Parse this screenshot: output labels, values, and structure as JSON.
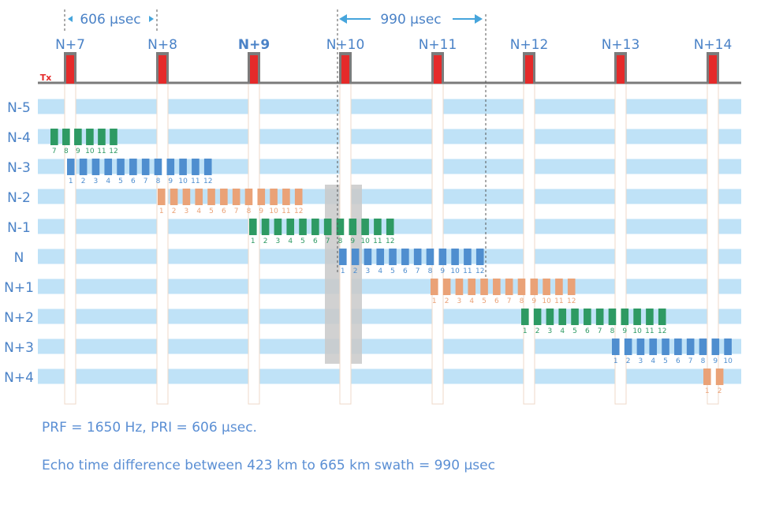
{
  "colors": {
    "band": "#bfe2f7",
    "tx_pulse": "#e52a2a",
    "baseline": "#7b7b7b",
    "label_blue": "#4a82c7",
    "green": "#2e9a63",
    "blue": "#4f8ecf",
    "orange": "#eaa277",
    "overlap": "#c9c9c9",
    "arrow": "#46a5dc",
    "caption": "#5b8fd4"
  },
  "tx_label": "Tx",
  "pulse_labels": [
    "N+7",
    "N+8",
    "N+9",
    "N+10",
    "N+11",
    "N+12",
    "N+13",
    "N+14"
  ],
  "bold_pulse_label": "N+9",
  "row_labels": [
    "N-5",
    "N-4",
    "N-3",
    "N-2",
    "N-1",
    "N",
    "N+1",
    "N+2",
    "N+3",
    "N+4"
  ],
  "annotations": {
    "pri": "606 μsec",
    "swath": "990 μsec"
  },
  "echo_trains": [
    {
      "row": "N-4",
      "color": "green",
      "labels": [
        "7",
        "8",
        "9",
        "10",
        "11",
        "12"
      ]
    },
    {
      "row": "N-3",
      "color": "blue",
      "labels": [
        "1",
        "2",
        "3",
        "4",
        "5",
        "6",
        "7",
        "8",
        "9",
        "10",
        "11",
        "12"
      ]
    },
    {
      "row": "N-2",
      "color": "orange",
      "labels": [
        "1",
        "2",
        "3",
        "4",
        "5",
        "6",
        "7",
        "8",
        "9",
        "10",
        "11",
        "12"
      ]
    },
    {
      "row": "N-1",
      "color": "green",
      "labels": [
        "1",
        "2",
        "3",
        "4",
        "5",
        "6",
        "7",
        "8",
        "9",
        "10",
        "11",
        "12"
      ]
    },
    {
      "row": "N",
      "color": "blue",
      "labels": [
        "1",
        "2",
        "3",
        "4",
        "5",
        "6",
        "7",
        "8",
        "9",
        "10",
        "11",
        "12"
      ]
    },
    {
      "row": "N+1",
      "color": "orange",
      "labels": [
        "1",
        "2",
        "3",
        "4",
        "5",
        "6",
        "7",
        "8",
        "9",
        "10",
        "11",
        "12"
      ]
    },
    {
      "row": "N+2",
      "color": "green",
      "labels": [
        "1",
        "2",
        "3",
        "4",
        "5",
        "6",
        "7",
        "8",
        "9",
        "10",
        "11",
        "12"
      ]
    },
    {
      "row": "N+3",
      "color": "blue",
      "labels": [
        "1",
        "2",
        "3",
        "4",
        "5",
        "6",
        "7",
        "8",
        "9",
        "10"
      ]
    },
    {
      "row": "N+4",
      "color": "orange",
      "labels": [
        "1",
        "2"
      ]
    }
  ],
  "captions": {
    "prf": "PRF = 1650 Hz, PRI = 606  μsec.",
    "echo": "Echo time difference between 423 km to 665 km swath = 990  μsec"
  }
}
